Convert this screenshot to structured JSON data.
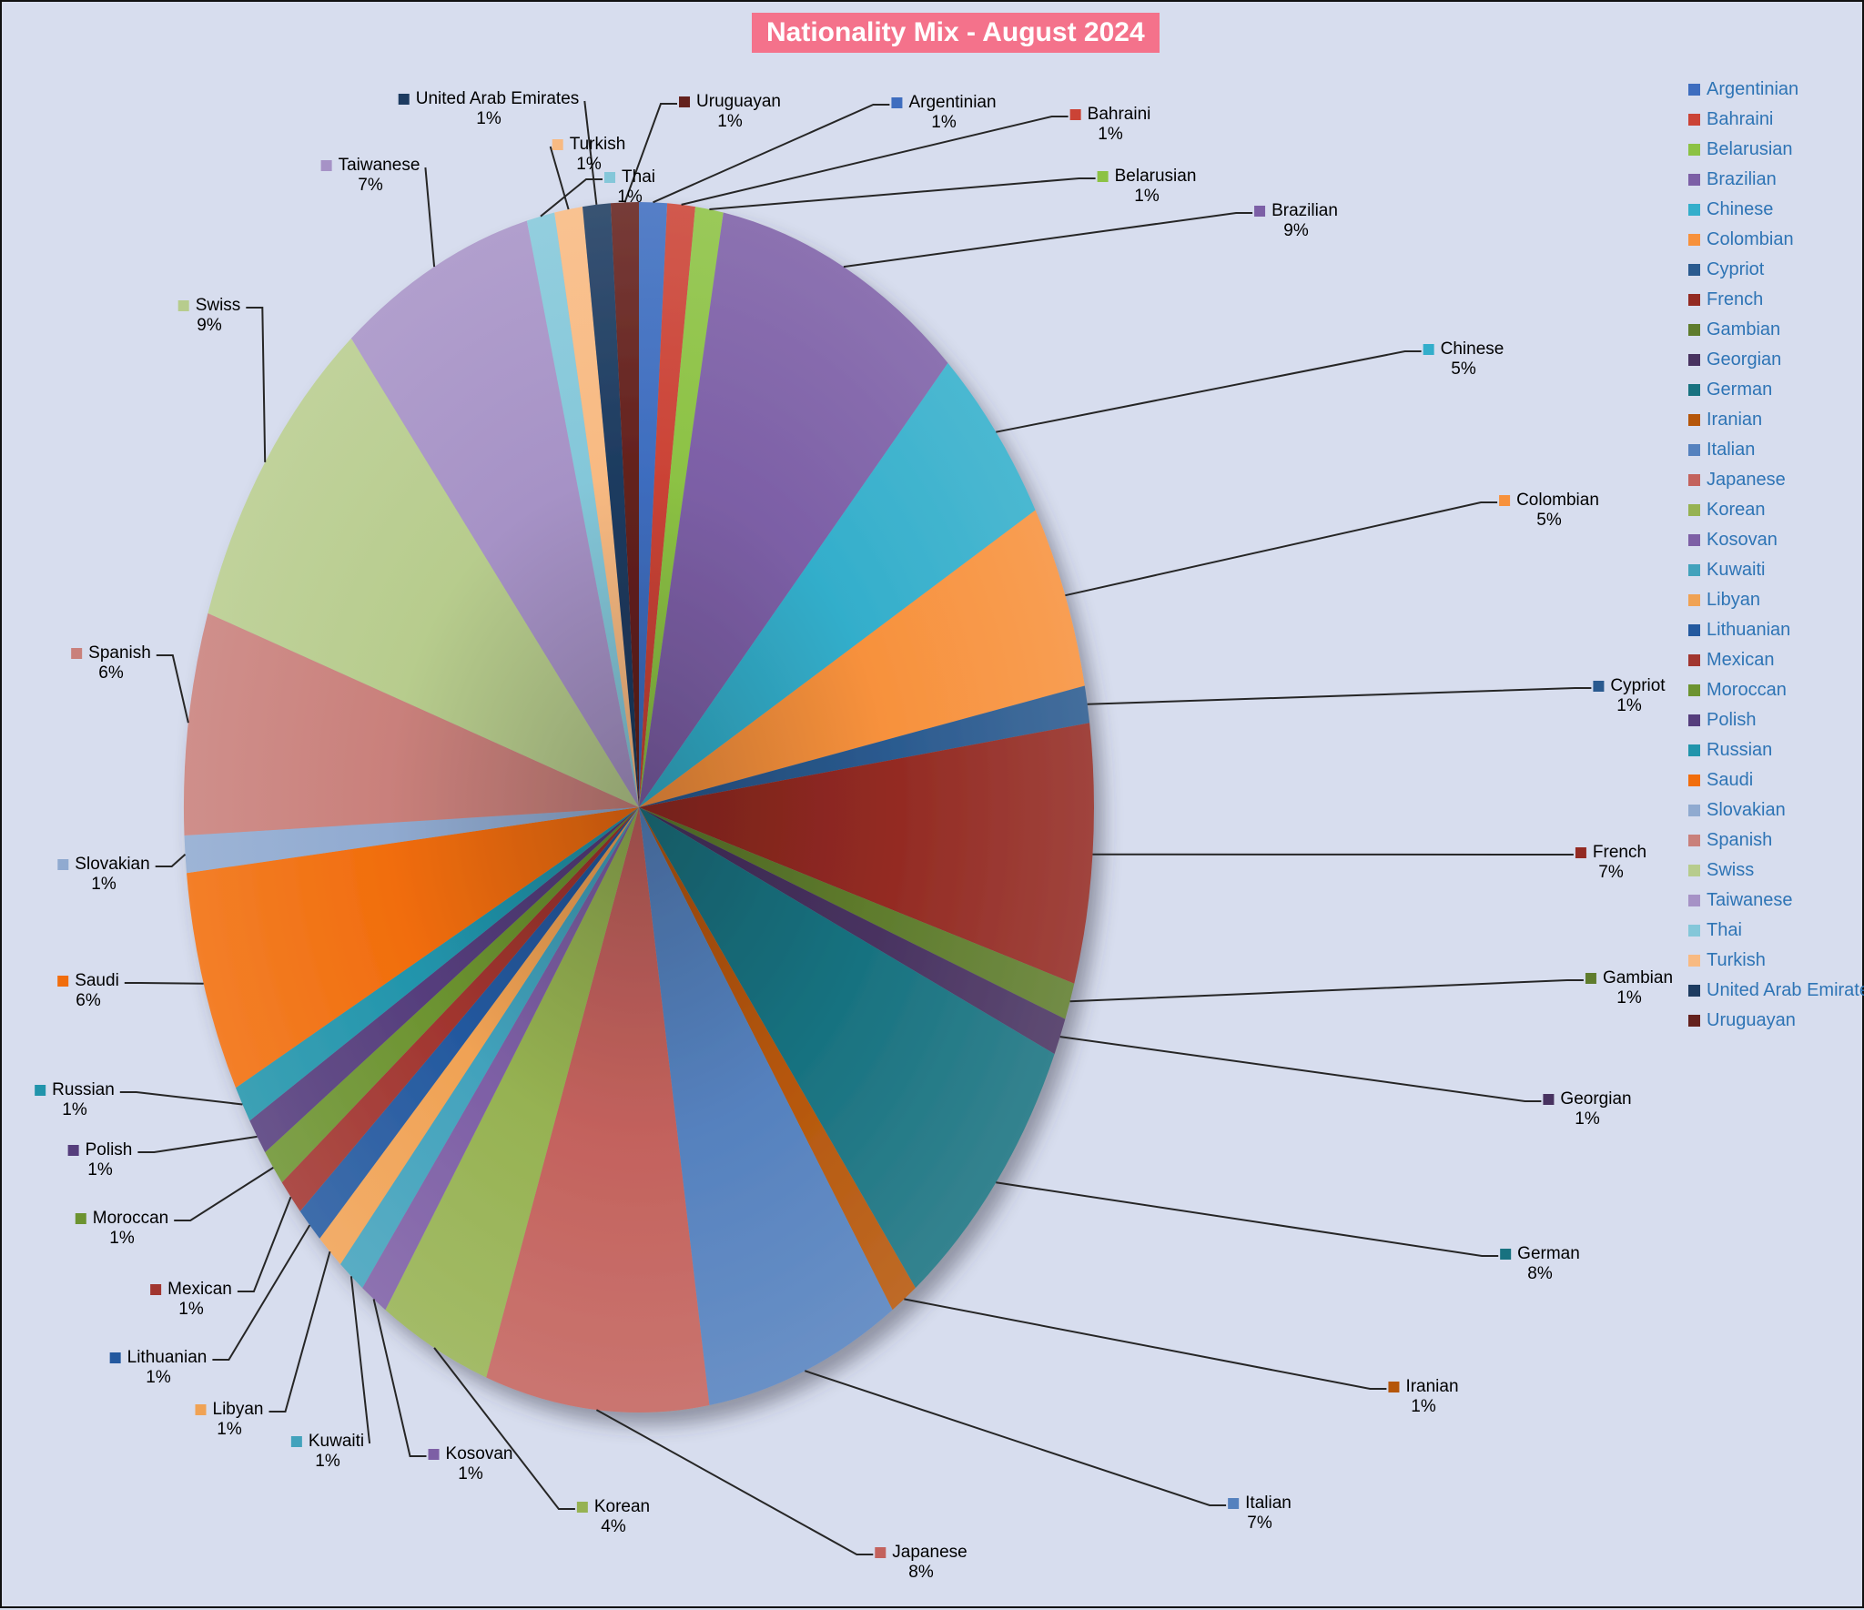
{
  "chart_data": {
    "type": "pie",
    "title": "Nationality Mix - August 2024",
    "legend_position": "right",
    "data_labels": "category name and percent, outside slices with leader lines",
    "unit": "%",
    "categories": [
      "Argentinian",
      "Bahraini",
      "Belarusian",
      "Brazilian",
      "Chinese",
      "Colombian",
      "Cypriot",
      "French",
      "Gambian",
      "Georgian",
      "German",
      "Iranian",
      "Italian",
      "Japanese",
      "Korean",
      "Kosovan",
      "Kuwaiti",
      "Libyan",
      "Lithuanian",
      "Mexican",
      "Moroccan",
      "Polish",
      "Russian",
      "Saudi",
      "Slovakian",
      "Spanish",
      "Swiss",
      "Taiwanese",
      "Thai",
      "Turkish",
      "United Arab Emirates",
      "Uruguayan"
    ],
    "values": [
      1,
      1,
      1,
      9,
      5,
      5,
      1,
      7,
      1,
      1,
      8,
      1,
      7,
      8,
      4,
      1,
      1,
      1,
      1,
      1,
      1,
      1,
      1,
      6,
      1,
      6,
      9,
      7,
      1,
      1,
      1,
      1
    ],
    "colors": [
      "#3E6DBF",
      "#CB4336",
      "#8CC244",
      "#7C5FA6",
      "#33AECB",
      "#F7913C",
      "#2A5A8F",
      "#932A22",
      "#5F7C2D",
      "#483260",
      "#187280",
      "#B5560A",
      "#5581BE",
      "#C3625D",
      "#96B252",
      "#7D5FA5",
      "#42A2BC",
      "#F0A254",
      "#24599F",
      "#A1352F",
      "#6C9330",
      "#553D7C",
      "#2194AB",
      "#F16D0C",
      "#90AAD0",
      "#C9807B",
      "#B7CC8D",
      "#A692C6",
      "#84C7D9",
      "#F8BA82",
      "#1D3B60",
      "#64211D"
    ]
  },
  "styles": {
    "background": "#D7DDEE",
    "title_bg": "#F4728B",
    "title_text": "#FFFFFF",
    "legend_text": "#2E74B5",
    "label_text": "#000000",
    "leader_line": "#262626"
  }
}
